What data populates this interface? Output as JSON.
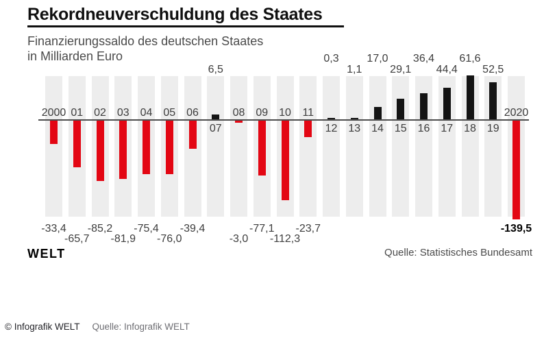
{
  "header": {
    "title": "Rekordneuverschuldung des Staates",
    "subtitle_line1": "Finanzierungssaldo des deutschen Staates",
    "subtitle_line2": "in Milliarden Euro"
  },
  "chart_data": {
    "type": "bar",
    "title": "Rekordneuverschuldung des Staates",
    "subtitle": "Finanzierungssaldo des deutschen Staates in Milliarden Euro",
    "unit": "Milliarden Euro",
    "categories": [
      "2000",
      "01",
      "02",
      "03",
      "04",
      "05",
      "06",
      "07",
      "08",
      "09",
      "10",
      "11",
      "12",
      "13",
      "14",
      "15",
      "16",
      "17",
      "18",
      "19",
      "2020"
    ],
    "values": [
      -33.4,
      -65.7,
      -85.2,
      -81.9,
      -75.4,
      -76.0,
      -39.4,
      6.5,
      -3.0,
      -77.1,
      -112.3,
      -23.7,
      0.3,
      1.1,
      17.0,
      29.1,
      36.4,
      44.4,
      61.6,
      52.5,
      -139.5
    ],
    "value_labels": [
      "-33,4",
      "-65,7",
      "-85,2",
      "-81,9",
      "-75,4",
      "-76,0",
      "-39,4",
      "6,5",
      "-3,0",
      "-77,1",
      "-112,3",
      "-23,7",
      "0,3",
      "1,1",
      "17,0",
      "29,1",
      "36,4",
      "44,4",
      "61,6",
      "52,5",
      "-139,5"
    ],
    "label_row": [
      "high",
      "low",
      "high",
      "low",
      "high",
      "low",
      "high",
      "low",
      "low",
      "high",
      "low",
      "high",
      "high",
      "low",
      "high",
      "low",
      "high",
      "low",
      "high",
      "low",
      "high"
    ],
    "highlighted_category": "2020",
    "ylim": [
      -139.5,
      61.6
    ],
    "grid": false,
    "legend": "none",
    "colors": {
      "negative_bar": "#e30613",
      "positive_bar": "#141414",
      "column_background": "#ededed",
      "axis": "#4d4d4d",
      "label": "#3d3d3d",
      "highlight_label": "#000000"
    },
    "source": "Quelle: Statistisches Bundesamt"
  },
  "branding": {
    "logo_text": "WELT"
  },
  "footer": {
    "copyright": "© Infografik WELT",
    "source": "Quelle: Infografik WELT"
  }
}
